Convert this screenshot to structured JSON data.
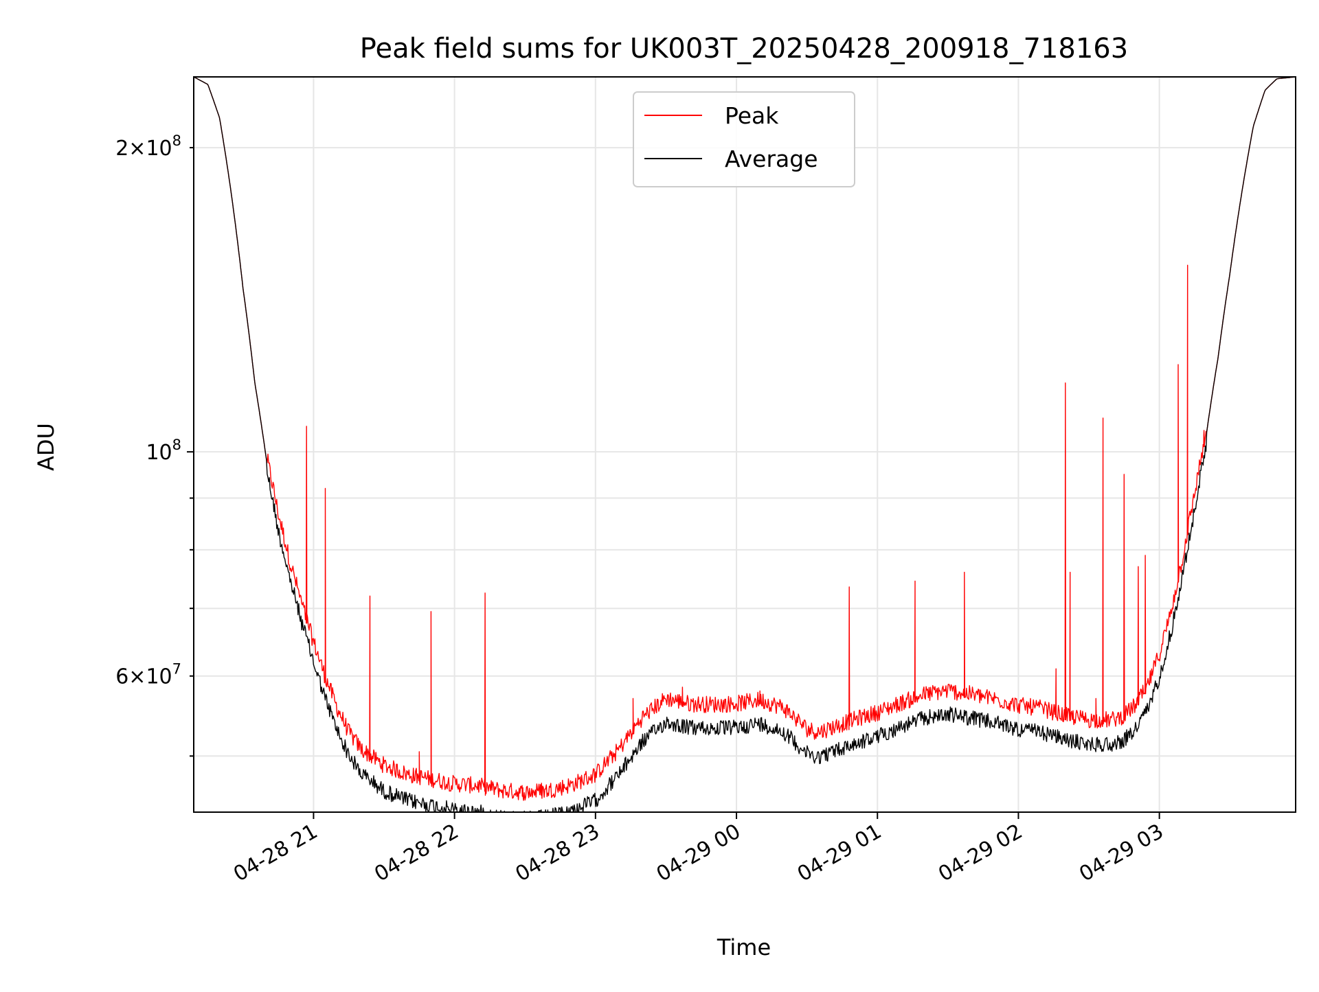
{
  "chart_data": {
    "type": "line",
    "title": "Peak field sums for UK003T_20250428_200918_718163",
    "xlabel": "Time",
    "ylabel": "ADU",
    "y_scale": "log",
    "ylim": [
      44000000,
      235000000
    ],
    "xlim": [
      "2025-04-28 20:09",
      "2025-04-29 03:58"
    ],
    "grid": true,
    "legend_position": "upper center",
    "x_ticks": [
      {
        "time": "2025-04-28 21:00",
        "label": "04-28 21"
      },
      {
        "time": "2025-04-28 22:00",
        "label": "04-28 22"
      },
      {
        "time": "2025-04-28 23:00",
        "label": "04-28 23"
      },
      {
        "time": "2025-04-29 00:00",
        "label": "04-29 00"
      },
      {
        "time": "2025-04-29 01:00",
        "label": "04-29 01"
      },
      {
        "time": "2025-04-29 02:00",
        "label": "04-29 02"
      },
      {
        "time": "2025-04-29 03:00",
        "label": "04-29 03"
      }
    ],
    "y_ticks_major": [
      {
        "value": 100000000,
        "base": "10",
        "exp": "8"
      }
    ],
    "y_ticks_minor_labeled": [
      {
        "value": 60000000,
        "mant": "6",
        "base": "10",
        "exp": "7"
      },
      {
        "value": 200000000,
        "mant": "2",
        "base": "10",
        "exp": "8"
      }
    ],
    "y_ticks_minor_unlabeled": [
      50000000,
      70000000,
      80000000,
      90000000
    ],
    "base_curve": {
      "time": [
        "2025-04-28 20:09",
        "2025-04-28 20:15",
        "2025-04-28 20:20",
        "2025-04-28 20:25",
        "2025-04-28 20:30",
        "2025-04-28 20:35",
        "2025-04-28 20:40",
        "2025-04-28 20:45",
        "2025-04-28 20:50",
        "2025-04-28 20:55",
        "2025-04-28 21:00",
        "2025-04-28 21:05",
        "2025-04-28 21:10",
        "2025-04-28 21:15",
        "2025-04-28 21:20",
        "2025-04-28 21:25",
        "2025-04-28 21:30",
        "2025-04-28 21:40",
        "2025-04-28 21:50",
        "2025-04-28 22:00",
        "2025-04-28 22:10",
        "2025-04-28 22:20",
        "2025-04-28 22:30",
        "2025-04-28 22:40",
        "2025-04-28 22:50",
        "2025-04-28 23:00",
        "2025-04-28 23:10",
        "2025-04-28 23:20",
        "2025-04-28 23:30",
        "2025-04-28 23:40",
        "2025-04-28 23:50",
        "2025-04-29 00:00",
        "2025-04-29 00:10",
        "2025-04-29 00:20",
        "2025-04-29 00:30",
        "2025-04-29 00:35",
        "2025-04-29 00:40",
        "2025-04-29 00:50",
        "2025-04-29 01:00",
        "2025-04-29 01:10",
        "2025-04-29 01:20",
        "2025-04-29 01:30",
        "2025-04-29 01:40",
        "2025-04-29 01:50",
        "2025-04-29 02:00",
        "2025-04-29 02:10",
        "2025-04-29 02:20",
        "2025-04-29 02:30",
        "2025-04-29 02:40",
        "2025-04-29 02:45",
        "2025-04-29 02:50",
        "2025-04-29 02:55",
        "2025-04-29 03:00",
        "2025-04-29 03:05",
        "2025-04-29 03:10",
        "2025-04-29 03:15",
        "2025-04-29 03:20",
        "2025-04-29 03:25",
        "2025-04-29 03:30",
        "2025-04-29 03:35",
        "2025-04-29 03:40",
        "2025-04-29 03:45",
        "2025-04-29 03:50",
        "2025-04-29 03:58"
      ],
      "average": [
        235000000,
        231000000,
        214000000,
        180000000,
        145000000,
        117000000,
        98000000,
        85000000,
        76000000,
        69000000,
        63000000,
        58000000,
        54000000,
        51000000,
        49000000,
        48000000,
        47000000,
        46000000,
        45500000,
        45000000,
        44800000,
        44300000,
        44100000,
        44300000,
        44900000,
        46000000,
        48800000,
        52600000,
        55000000,
        54300000,
        54200000,
        54300000,
        54800000,
        53800000,
        51200000,
        50800000,
        51300000,
        52300000,
        53200000,
        54400000,
        55500000,
        56000000,
        55500000,
        54900000,
        54100000,
        53700000,
        52800000,
        52300000,
        52300000,
        52800000,
        54200000,
        56600000,
        61000000,
        67600000,
        77000000,
        89000000,
        104000000,
        124000000,
        150000000,
        180000000,
        210000000,
        228000000,
        234000000,
        235000000
      ],
      "peak_offset": [
        0,
        0,
        0,
        0,
        0,
        0,
        0,
        1000000,
        1000000,
        1000000,
        1200000,
        1300000,
        1300000,
        1300000,
        1400000,
        1400000,
        1500000,
        1500000,
        1500000,
        1500000,
        1500000,
        1500000,
        1500000,
        1500000,
        1500000,
        1500000,
        1500000,
        1500000,
        1500000,
        1500000,
        1500000,
        1500000,
        1500000,
        1500000,
        1500000,
        1500000,
        1500000,
        1500000,
        1500000,
        1500000,
        1500000,
        1500000,
        1500000,
        1500000,
        1500000,
        1500000,
        1500000,
        1500000,
        1500000,
        1500000,
        1500000,
        1500000,
        1500000,
        1200000,
        1000000,
        1000000,
        0,
        0,
        0,
        0,
        0,
        0,
        0,
        0
      ]
    },
    "series": [
      {
        "name": "Peak",
        "color": "#ff0000",
        "spikes": [
          {
            "time": "2025-04-28 20:57",
            "value": 106000000
          },
          {
            "time": "2025-04-28 21:05",
            "value": 92000000
          },
          {
            "time": "2025-04-28 21:24",
            "value": 72000000
          },
          {
            "time": "2025-04-28 21:36",
            "value": 47800000
          },
          {
            "time": "2025-04-28 21:45",
            "value": 50500000
          },
          {
            "time": "2025-04-28 21:50",
            "value": 69500000
          },
          {
            "time": "2025-04-28 22:13",
            "value": 72500000
          },
          {
            "time": "2025-04-28 22:22",
            "value": 46000000
          },
          {
            "time": "2025-04-28 22:29",
            "value": 46000000
          },
          {
            "time": "2025-04-28 22:37",
            "value": 47000000
          },
          {
            "time": "2025-04-28 23:16",
            "value": 57000000
          },
          {
            "time": "2025-04-28 23:37",
            "value": 58500000
          },
          {
            "time": "2025-04-29 00:10",
            "value": 58000000
          },
          {
            "time": "2025-04-29 00:48",
            "value": 73500000
          },
          {
            "time": "2025-04-29 01:16",
            "value": 74500000
          },
          {
            "time": "2025-04-29 01:37",
            "value": 76000000
          },
          {
            "time": "2025-04-29 02:16",
            "value": 61000000
          },
          {
            "time": "2025-04-29 02:20",
            "value": 117000000
          },
          {
            "time": "2025-04-29 02:22",
            "value": 76000000
          },
          {
            "time": "2025-04-29 02:33",
            "value": 57000000
          },
          {
            "time": "2025-04-29 02:36",
            "value": 108000000
          },
          {
            "time": "2025-04-29 02:45",
            "value": 95000000
          },
          {
            "time": "2025-04-29 02:51",
            "value": 77000000
          },
          {
            "time": "2025-04-29 02:54",
            "value": 79000000
          },
          {
            "time": "2025-04-29 03:08",
            "value": 122000000
          },
          {
            "time": "2025-04-29 03:12",
            "value": 153000000
          },
          {
            "time": "2025-04-29 03:19",
            "value": 105000000
          }
        ]
      },
      {
        "name": "Average",
        "color": "#000000"
      }
    ]
  }
}
